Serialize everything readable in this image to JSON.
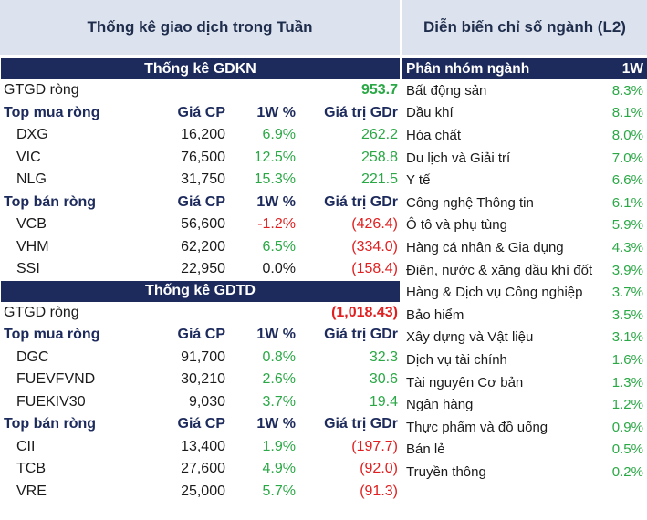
{
  "left_title": "Thống kê giao dịch trong Tuần",
  "right_title": "Diễn biến chỉ số ngành (L2)",
  "gdkn": {
    "title": "Thống kê GDKN",
    "gtgd_label": "GTGD ròng",
    "gtgd_value": "953.7",
    "buy_header": {
      "name": "Top mua ròng",
      "price": "Giá CP",
      "pct": "1W %",
      "val": "Giá trị GDr"
    },
    "buy_rows": [
      {
        "name": "DXG",
        "price": "16,200",
        "pct": "6.9%",
        "val": "262.2"
      },
      {
        "name": "VIC",
        "price": "76,500",
        "pct": "12.5%",
        "val": "258.8"
      },
      {
        "name": "NLG",
        "price": "31,750",
        "pct": "15.3%",
        "val": "221.5"
      }
    ],
    "sell_header": {
      "name": "Top bán ròng",
      "price": "Giá CP",
      "pct": "1W %",
      "val": "Giá trị GDr"
    },
    "sell_rows": [
      {
        "name": "VCB",
        "price": "56,600",
        "pct": "-1.2%",
        "val": "(426.4)"
      },
      {
        "name": "VHM",
        "price": "62,200",
        "pct": "6.5%",
        "val": "(334.0)"
      },
      {
        "name": "SSI",
        "price": "22,950",
        "pct": "0.0%",
        "val": "(158.4)"
      }
    ]
  },
  "gdtd": {
    "title": "Thống kê GDTD",
    "gtgd_label": "GTGD ròng",
    "gtgd_value": "(1,018.43)",
    "buy_header": {
      "name": "Top mua ròng",
      "price": "Giá CP",
      "pct": "1W %",
      "val": "Giá trị GDr"
    },
    "buy_rows": [
      {
        "name": "DGC",
        "price": "91,700",
        "pct": "0.8%",
        "val": "32.3"
      },
      {
        "name": "FUEVFVND",
        "price": "30,210",
        "pct": "2.6%",
        "val": "30.6"
      },
      {
        "name": "FUEKIV30",
        "price": "9,030",
        "pct": "3.7%",
        "val": "19.4"
      }
    ],
    "sell_header": {
      "name": "Top bán ròng",
      "price": "Giá CP",
      "pct": "1W %",
      "val": "Giá trị GDr"
    },
    "sell_rows": [
      {
        "name": "CII",
        "price": "13,400",
        "pct": "1.9%",
        "val": "(197.7)"
      },
      {
        "name": "TCB",
        "price": "27,600",
        "pct": "4.9%",
        "val": "(92.0)"
      },
      {
        "name": "VRE",
        "price": "25,000",
        "pct": "5.7%",
        "val": "(91.3)"
      }
    ]
  },
  "sectors": {
    "header_name": "Phân nhóm ngành",
    "header_pct": "1W",
    "rows": [
      {
        "name": "Bất động sản",
        "pct": "8.3%"
      },
      {
        "name": "Dầu khí",
        "pct": "8.1%"
      },
      {
        "name": "Hóa chất",
        "pct": "8.0%"
      },
      {
        "name": "Du lịch và Giải trí",
        "pct": "7.0%"
      },
      {
        "name": "Y tế",
        "pct": "6.6%"
      },
      {
        "name": "Công nghệ Thông tin",
        "pct": "6.1%"
      },
      {
        "name": "Ô tô và phụ tùng",
        "pct": "5.9%"
      },
      {
        "name": "Hàng cá nhân & Gia dụng",
        "pct": "4.3%"
      },
      {
        "name": "Điện, nước & xăng dầu khí đốt",
        "pct": "3.9%"
      },
      {
        "name": "Hàng & Dịch vụ Công nghiệp",
        "pct": "3.7%"
      },
      {
        "name": "Bảo hiểm",
        "pct": "3.5%"
      },
      {
        "name": "Xây dựng và Vật liệu",
        "pct": "3.1%"
      },
      {
        "name": "Dịch vụ tài chính",
        "pct": "1.6%"
      },
      {
        "name": "Tài nguyên Cơ bản",
        "pct": "1.3%"
      },
      {
        "name": "Ngân hàng",
        "pct": "1.2%"
      },
      {
        "name": "Thực phẩm và đồ uống",
        "pct": "0.9%"
      },
      {
        "name": "Bán lẻ",
        "pct": "0.5%"
      },
      {
        "name": "Truyền thông",
        "pct": "0.2%"
      }
    ]
  },
  "colors": {
    "navy": "#1c2a5c",
    "title_bg": "#dde3ee",
    "green": "#2aa845",
    "red": "#e02020"
  }
}
